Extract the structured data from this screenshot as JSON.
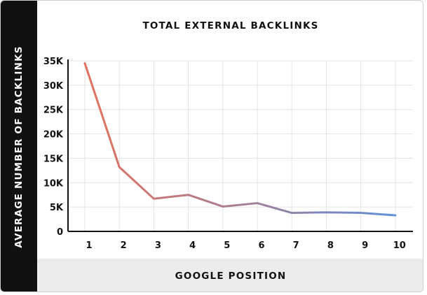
{
  "chart_data": {
    "type": "line",
    "title": "TOTAL EXTERNAL BACKLINKS",
    "xlabel": "GOOGLE POSITION",
    "ylabel": "AVERAGE NUMBER OF BACKLINKS",
    "categories": [
      "1",
      "2",
      "3",
      "4",
      "5",
      "6",
      "7",
      "8",
      "9",
      "10"
    ],
    "values": [
      34500,
      13200,
      6700,
      7500,
      5100,
      5800,
      3800,
      3900,
      3800,
      3300
    ],
    "ylim": [
      0,
      35000
    ],
    "yticks": [
      {
        "value": 0,
        "label": "0"
      },
      {
        "value": 5000,
        "label": "5K"
      },
      {
        "value": 10000,
        "label": "10K"
      },
      {
        "value": 15000,
        "label": "15K"
      },
      {
        "value": 20000,
        "label": "20K"
      },
      {
        "value": 25000,
        "label": "25K"
      },
      {
        "value": 30000,
        "label": "30K"
      },
      {
        "value": 35000,
        "label": "35K"
      }
    ],
    "grid": true,
    "line_gradient": [
      "#e4705e",
      "#a77f95",
      "#5f91d8"
    ]
  }
}
